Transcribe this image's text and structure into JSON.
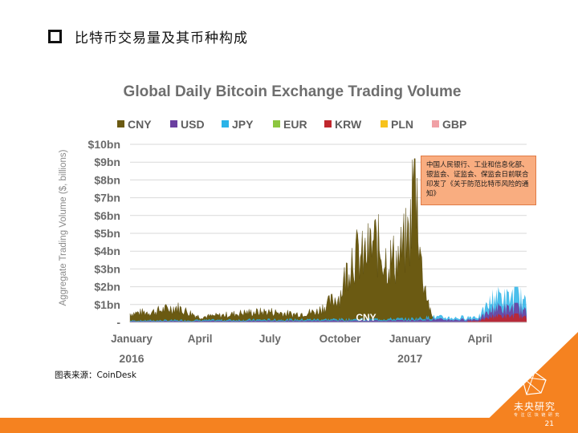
{
  "slide": {
    "title": "比特币交易量及其币种构成",
    "source": "图表来源：CoinDesk",
    "page_number": "21",
    "brand_name": "未央研究",
    "brand_tagline": "专 注 区 块 链 研 究",
    "callout_text": "中国人民银行、工业和信息化部、银监会、证监会、保监会日前联合印发了《关于防范比特币风险的通知》",
    "callout_color": "#f9ad80",
    "accent_color": "#f58220"
  },
  "chart_data": {
    "type": "area",
    "title": "Global Daily Bitcoin Exchange Trading Volume",
    "ylabel": "Aggregate Trading Volume ($, billions)",
    "xlabel": "",
    "ylim": [
      0,
      10
    ],
    "grid": true,
    "legend_position": "top",
    "y_ticks": [
      "$1bn",
      "$2bn",
      "$3bn",
      "$4bn",
      "$5bn",
      "$6bn",
      "$7bn",
      "$8bn",
      "$9bn",
      "$10bn"
    ],
    "x_ticks": [
      "January",
      "April",
      "July",
      "October",
      "January",
      "April"
    ],
    "x_years": [
      "2016",
      "2017"
    ],
    "annotation": "CNY",
    "series": [
      {
        "name": "CNY",
        "color": "#6b5a12"
      },
      {
        "name": "USD",
        "color": "#6b3fa0"
      },
      {
        "name": "JPY",
        "color": "#2ab3e8"
      },
      {
        "name": "EUR",
        "color": "#8cc63f"
      },
      {
        "name": "KRW",
        "color": "#c0272d"
      },
      {
        "name": "PLN",
        "color": "#f7c21b"
      },
      {
        "name": "GBP",
        "color": "#f0a0a5"
      }
    ],
    "cny_profile": [
      {
        "month": 0,
        "value": 0.5
      },
      {
        "month": 1,
        "value": 0.6
      },
      {
        "month": 2,
        "value": 0.85
      },
      {
        "month": 3,
        "value": 0.3
      },
      {
        "month": 4,
        "value": 0.4
      },
      {
        "month": 5,
        "value": 0.55
      },
      {
        "month": 6,
        "value": 0.6
      },
      {
        "month": 7,
        "value": 0.45
      },
      {
        "month": 8,
        "value": 0.6
      },
      {
        "month": 9,
        "value": 1.5
      },
      {
        "month": 9.5,
        "value": 3.8
      },
      {
        "month": 10,
        "value": 3.6
      },
      {
        "month": 10.5,
        "value": 4.5
      },
      {
        "month": 11,
        "value": 3.5
      },
      {
        "month": 11.5,
        "value": 3.6
      },
      {
        "month": 12,
        "value": 5.0
      },
      {
        "month": 12.2,
        "value": 9.2
      },
      {
        "month": 12.5,
        "value": 3.0
      },
      {
        "month": 12.9,
        "value": 0.4
      },
      {
        "month": 13.2,
        "value": 0.05
      },
      {
        "month": 17,
        "value": 0.05
      }
    ],
    "other_profile": [
      {
        "month": 0,
        "value": 0.1
      },
      {
        "month": 6,
        "value": 0.15
      },
      {
        "month": 12,
        "value": 0.2
      },
      {
        "month": 13,
        "value": 0.3
      },
      {
        "month": 14,
        "value": 0.25
      },
      {
        "month": 15,
        "value": 0.35
      },
      {
        "month": 15.7,
        "value": 1.6
      },
      {
        "month": 16.2,
        "value": 1.3
      },
      {
        "month": 16.6,
        "value": 1.7
      },
      {
        "month": 17,
        "value": 0.9
      }
    ]
  }
}
